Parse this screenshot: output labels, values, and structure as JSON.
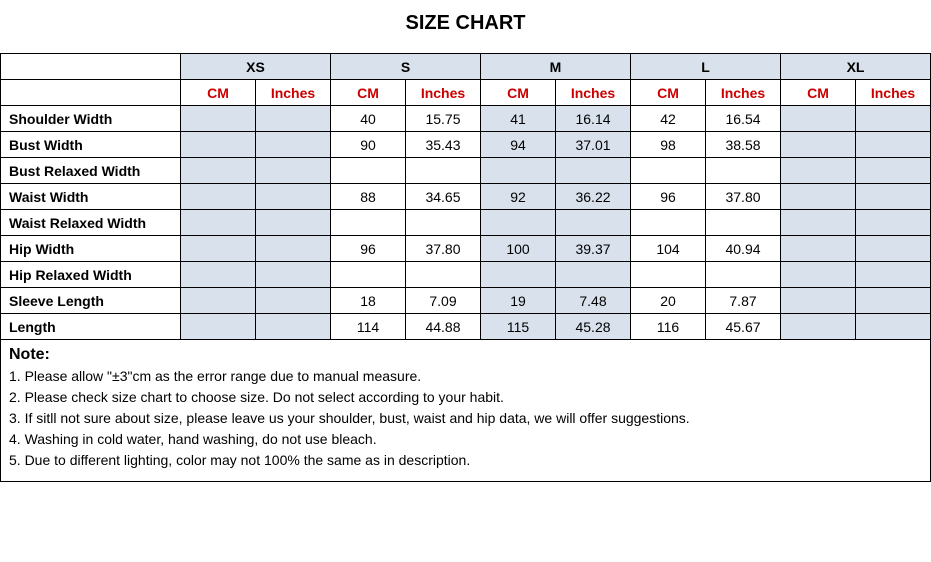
{
  "title": "SIZE CHART",
  "sizes": [
    "XS",
    "S",
    "M",
    "L",
    "XL"
  ],
  "units": [
    "CM",
    "Inches"
  ],
  "columns": [
    {
      "size_index": 0,
      "shaded": true
    },
    {
      "size_index": 1,
      "shaded": false
    },
    {
      "size_index": 2,
      "shaded": true
    },
    {
      "size_index": 3,
      "shaded": false
    },
    {
      "size_index": 4,
      "shaded": true
    }
  ],
  "rows": [
    {
      "label": "Shoulder Width",
      "values": [
        "",
        "",
        "40",
        "15.75",
        "41",
        "16.14",
        "42",
        "16.54",
        "",
        ""
      ]
    },
    {
      "label": "Bust Width",
      "values": [
        "",
        "",
        "90",
        "35.43",
        "94",
        "37.01",
        "98",
        "38.58",
        "",
        ""
      ]
    },
    {
      "label": "Bust Relaxed Width",
      "values": [
        "",
        "",
        "",
        "",
        "",
        "",
        "",
        "",
        "",
        ""
      ]
    },
    {
      "label": "Waist Width",
      "values": [
        "",
        "",
        "88",
        "34.65",
        "92",
        "36.22",
        "96",
        "37.80",
        "",
        ""
      ]
    },
    {
      "label": "Waist Relaxed Width",
      "values": [
        "",
        "",
        "",
        "",
        "",
        "",
        "",
        "",
        "",
        ""
      ]
    },
    {
      "label": "Hip Width",
      "values": [
        "",
        "",
        "96",
        "37.80",
        "100",
        "39.37",
        "104",
        "40.94",
        "",
        ""
      ]
    },
    {
      "label": "Hip Relaxed Width",
      "values": [
        "",
        "",
        "",
        "",
        "",
        "",
        "",
        "",
        "",
        ""
      ]
    },
    {
      "label": "Sleeve Length",
      "values": [
        "",
        "",
        "18",
        "7.09",
        "19",
        "7.48",
        "20",
        "7.87",
        "",
        ""
      ]
    },
    {
      "label": "Length",
      "values": [
        "",
        "",
        "114",
        "44.88",
        "115",
        "45.28",
        "116",
        "45.67",
        "",
        ""
      ]
    }
  ],
  "notes": {
    "title": "Note:",
    "lines": [
      "1. Please allow \"±3\"cm as the error range due to manual measure.",
      "2. Please check size chart to choose size. Do not select according to your habit.",
      "3. If sitll not sure about size, please leave us your shoulder, bust, waist and hip data, we will offer suggestions.",
      "4. Washing in cold water, hand washing, do not use bleach.",
      "5. Due to different lighting, color may not 100% the same as in description."
    ]
  },
  "colors": {
    "shaded_bg": "#d9e1ed",
    "unit_text": "#cc0000",
    "border": "#000000"
  }
}
